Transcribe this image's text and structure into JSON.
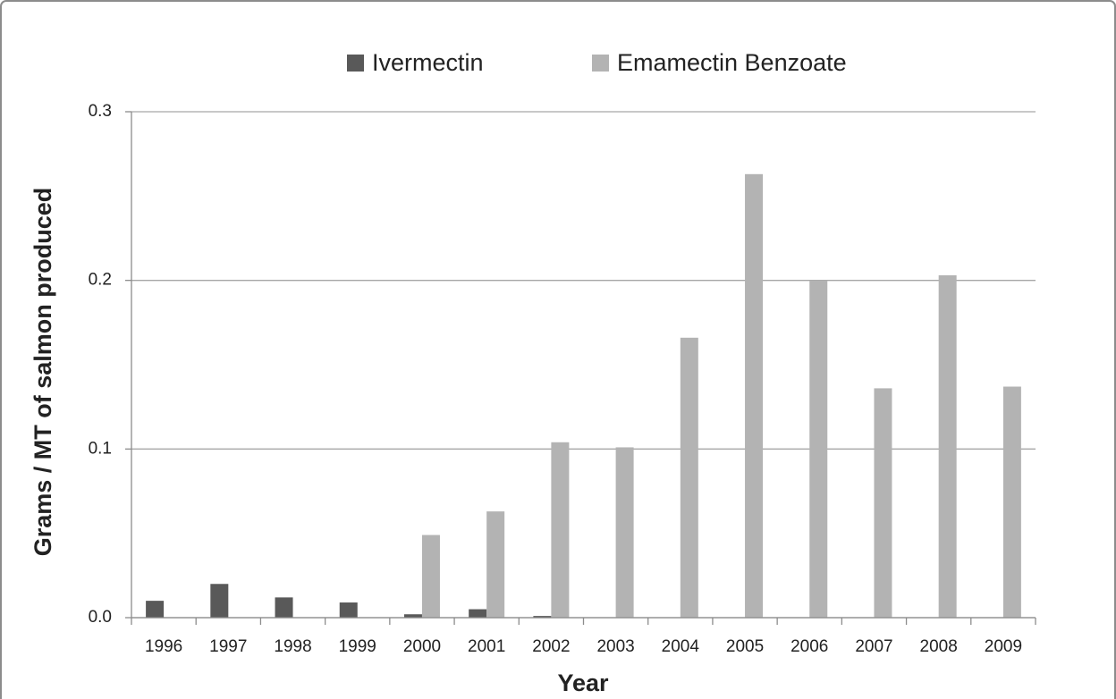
{
  "chart_data": {
    "type": "bar",
    "x_label": "Year",
    "y_label": "Grams / MT of salmon produced",
    "categories": [
      "1996",
      "1997",
      "1998",
      "1999",
      "2000",
      "2001",
      "2002",
      "2003",
      "2004",
      "2005",
      "2006",
      "2007",
      "2008",
      "2009"
    ],
    "series": [
      {
        "name": "Ivermectin",
        "color": "#595959",
        "values": [
          0.01,
          0.02,
          0.012,
          0.009,
          0.002,
          0.005,
          0.001,
          0,
          0,
          0,
          0,
          0,
          0,
          0
        ]
      },
      {
        "name": "Emamectin Benzoate",
        "color": "#b3b3b3",
        "values": [
          0,
          0,
          0,
          0,
          0.049,
          0.063,
          0.104,
          0.101,
          0.166,
          0.263,
          0.2,
          0.136,
          0.203,
          0.137
        ]
      }
    ],
    "ylim": [
      0,
      0.3
    ],
    "yticks": [
      {
        "value": 0,
        "label": "0.0"
      },
      0.1,
      0.2,
      0.3
    ],
    "grid": true
  }
}
